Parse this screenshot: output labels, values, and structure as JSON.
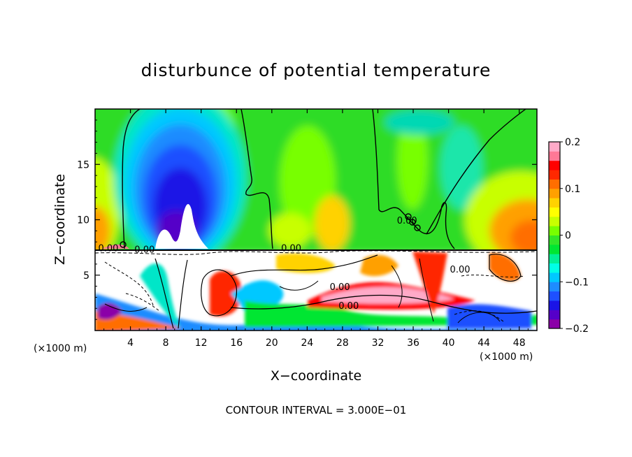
{
  "chart_data": {
    "type": "heatmap",
    "title": "disturbunce of potential temperature",
    "xlabel": "X−coordinate",
    "ylabel": "Z−coordinate",
    "x_unit_left": "(×1000 m)",
    "x_unit_right": "(×1000 m)",
    "footer": "CONTOUR INTERVAL = 3.000E−01",
    "xlim": [
      0,
      50
    ],
    "ylim": [
      0,
      20
    ],
    "x_ticks": [
      "4",
      "8",
      "12",
      "16",
      "20",
      "24",
      "28",
      "32",
      "36",
      "40",
      "44",
      "48"
    ],
    "x_tick_values": [
      4,
      8,
      12,
      16,
      20,
      24,
      28,
      32,
      36,
      40,
      44,
      48
    ],
    "y_ticks": [
      "5",
      "10",
      "15"
    ],
    "y_tick_values": [
      5,
      10,
      15
    ],
    "colorbar": {
      "range": [
        -0.2,
        0.2
      ],
      "tick_labels": [
        "0.2",
        "0.1",
        "0",
        "−0.1",
        "−0.2"
      ],
      "tick_values": [
        0.2,
        0.1,
        0,
        -0.1,
        -0.2
      ],
      "colors": [
        "#8b00a8",
        "#5500c8",
        "#1a14e6",
        "#1e50ff",
        "#1e8cff",
        "#00c8ff",
        "#00ffe6",
        "#00f096",
        "#00e632",
        "#32e628",
        "#78ff00",
        "#c8ff00",
        "#ffff00",
        "#ffd200",
        "#ffa000",
        "#ff6e00",
        "#ff2800",
        "#ff0000",
        "#ff7896",
        "#ffaac8"
      ]
    },
    "contour_labels": [
      {
        "text": "0.00",
        "x": 1.5,
        "z": 7.4
      },
      {
        "text": "0.00",
        "x": 5.6,
        "z": 7.3
      },
      {
        "text": "0.00",
        "x": 22.2,
        "z": 7.4
      },
      {
        "text": "0.00",
        "x": 27.7,
        "z": 3.9
      },
      {
        "text": "0.00",
        "x": 28.7,
        "z": 2.2
      },
      {
        "text": "0.00",
        "x": 41.3,
        "z": 5.5
      },
      {
        "text": "0.00",
        "x": 35.3,
        "z": 9.9
      }
    ],
    "fields": {
      "upper_background": 0.0,
      "cold_column": {
        "x_center": 10,
        "z_center": 12.5,
        "min": -0.2
      },
      "warm_edges": [
        {
          "x": 0,
          "z": 9,
          "max": 0.12
        },
        {
          "x": 50,
          "z": 9.5,
          "max": 0.15
        }
      ],
      "interface_height": 7.3
    }
  }
}
